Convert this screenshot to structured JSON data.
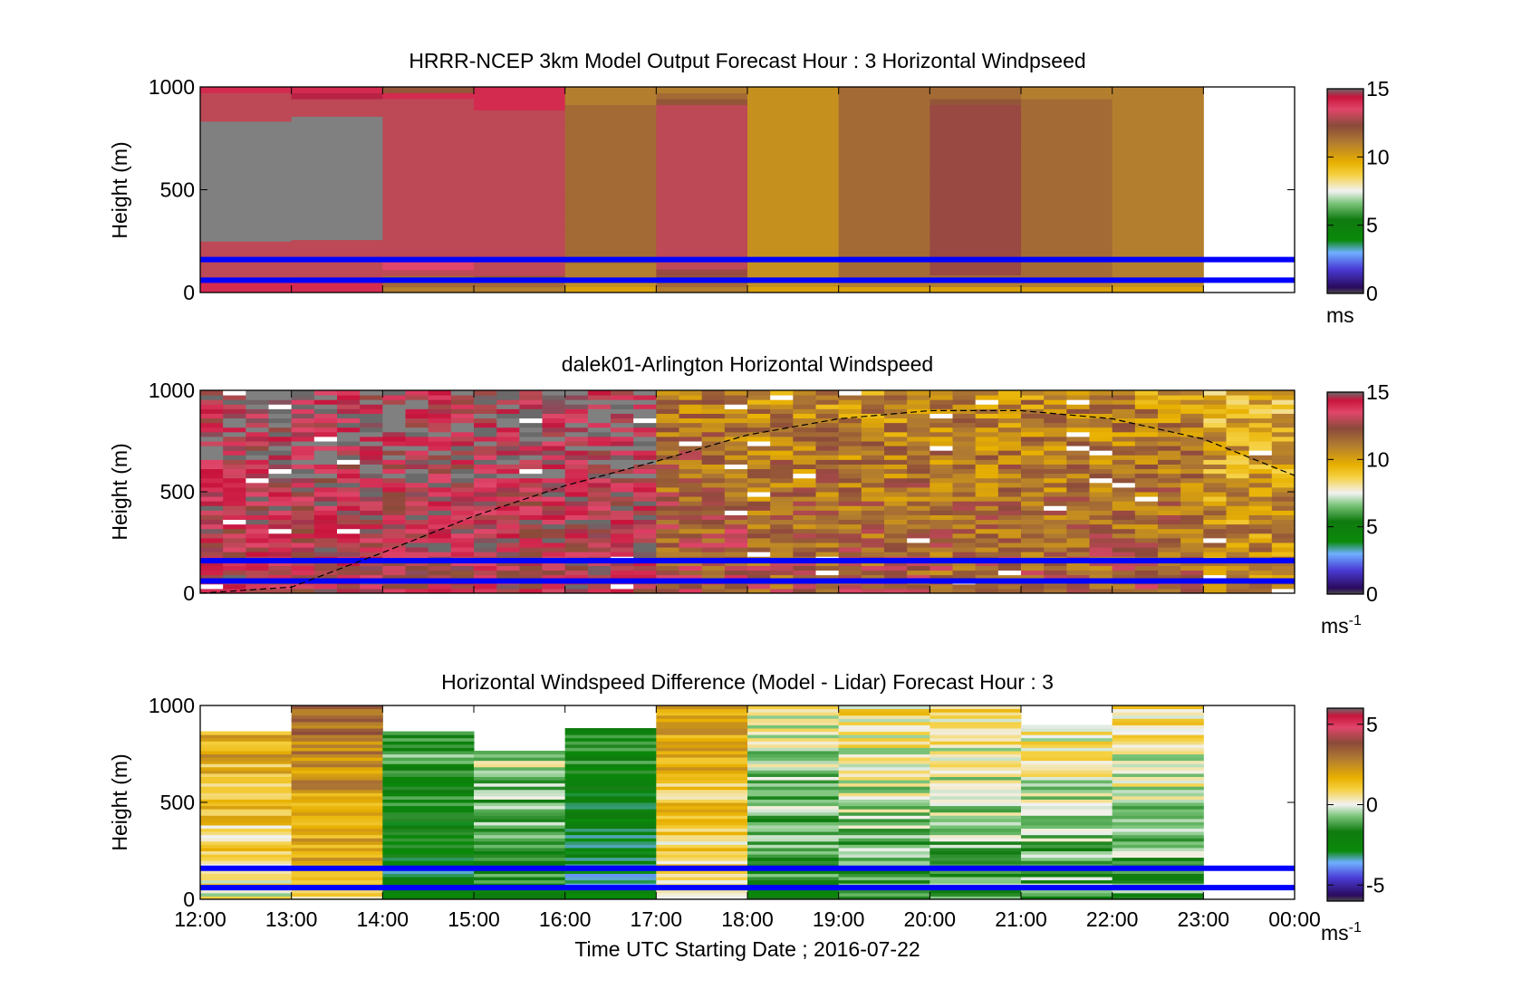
{
  "figure": {
    "xlabel": "Time UTC  Starting Date ; 2016-07-22",
    "x_ticks": [
      "12:00",
      "13:00",
      "14:00",
      "15:00",
      "16:00",
      "17:00",
      "18:00",
      "19:00",
      "20:00",
      "21:00",
      "22:00",
      "23:00",
      "00:00"
    ],
    "ylabel": "Height (m)",
    "y_ticks": [
      "0",
      "500",
      "1000"
    ],
    "line_color": "#0000ff",
    "reference_heights_m": [
      60,
      160
    ]
  },
  "panels": [
    {
      "title": "HRRR-NCEP 3km Model Output   Forecast Hour : 3 Horizontal Windpseed",
      "colorbar": {
        "ticks": [
          "0",
          "5",
          "10",
          "15"
        ],
        "unit": "ms",
        "unit_sup": ""
      }
    },
    {
      "title": "dalek01-Arlington  Horizontal Windspeed",
      "colorbar": {
        "ticks": [
          "0",
          "5",
          "10",
          "15"
        ],
        "unit": "ms",
        "unit_sup": "-1"
      }
    },
    {
      "title": "Horizontal Windspeed Difference (Model - Lidar) Forecast Hour : 3",
      "colorbar": {
        "ticks": [
          "-5",
          "0",
          "5"
        ],
        "unit": "ms",
        "unit_sup": "-1"
      }
    }
  ],
  "chart_data": [
    {
      "type": "heatmap",
      "title": "HRRR-NCEP 3km Model Output   Forecast Hour : 3 Horizontal Windpseed",
      "xlabel": "",
      "ylabel": "Height (m)",
      "x_range": [
        "12:00",
        "00:00"
      ],
      "ylim": [
        0,
        1000
      ],
      "clim": [
        0,
        15
      ],
      "colorbar_unit": "ms",
      "hours": [
        "12:00",
        "13:00",
        "14:00",
        "15:00",
        "16:00",
        "17:00",
        "18:00",
        "19:00",
        "20:00",
        "21:00",
        "22:00"
      ],
      "column_speeds_ms": [
        [
          14,
          14,
          13,
          13,
          13,
          13,
          13,
          13,
          13,
          13,
          13,
          13,
          13,
          13,
          13,
          13,
          13,
          13,
          13,
          13,
          13,
          13,
          13,
          13,
          13,
          13,
          13,
          13,
          13,
          13,
          13,
          13,
          13,
          13,
          13,
          14
        ],
        [
          14,
          14,
          13,
          13,
          13,
          13,
          13,
          13,
          13,
          13,
          13,
          13,
          13,
          13,
          13,
          13,
          13,
          13,
          13,
          13,
          13,
          13,
          13,
          13,
          13,
          13,
          13,
          13,
          13,
          13,
          13,
          13,
          13,
          14.5,
          14
        ],
        [
          11,
          11.5,
          11.5,
          13,
          13.5,
          13.5,
          13,
          13,
          13,
          13,
          13,
          13,
          13,
          13,
          13,
          13,
          13,
          13,
          13,
          13,
          13,
          13,
          13,
          13,
          13,
          13,
          13,
          13,
          13,
          13,
          13,
          13,
          13,
          13,
          14,
          12
        ],
        [
          11,
          11.5,
          12,
          13,
          13,
          13,
          13,
          13,
          13,
          13,
          13,
          13,
          13,
          13,
          13,
          13,
          13,
          13,
          13,
          13,
          13,
          13,
          13,
          13,
          13,
          13,
          13,
          13,
          13,
          13,
          13,
          13,
          14,
          14,
          14,
          14
        ],
        [
          10,
          10.5,
          11,
          11,
          11,
          11.5,
          11.5,
          11.5,
          11.5,
          11.5,
          11.5,
          11.5,
          11.5,
          11.5,
          11.5,
          11.5,
          11.5,
          11.5,
          11.5,
          11.5,
          11.5,
          11.5,
          11.5,
          11.5,
          11.5,
          11.5,
          11.5,
          11.5,
          11.5,
          11.5,
          11.5,
          11.5,
          11,
          11,
          11
        ],
        [
          11,
          11.5,
          12,
          12.5,
          13,
          13,
          13,
          13,
          13,
          13,
          13,
          13,
          13,
          13,
          13,
          13,
          13,
          13,
          13,
          13,
          13,
          13,
          13,
          13,
          13,
          13,
          13,
          13,
          13,
          13,
          13,
          13,
          12,
          11.5,
          11
        ],
        [
          10,
          10.5,
          10.5,
          10.5,
          10.5,
          10.5,
          10.5,
          10.5,
          10.5,
          10.5,
          10.5,
          10.5,
          10.5,
          10.5,
          10.5,
          10.5,
          10.5,
          10.5,
          10.5,
          10.5,
          10.5,
          10.5,
          10.5,
          10.5,
          10.5,
          10.5,
          10.5,
          10.5,
          10.5,
          10.5,
          10.5,
          10.5,
          10.5,
          10.5,
          10.5
        ],
        [
          10,
          11,
          11.5,
          11.5,
          11.5,
          11.5,
          11.5,
          11.5,
          11.5,
          11.5,
          11.5,
          11.5,
          11.5,
          11.5,
          11.5,
          11.5,
          11.5,
          11.5,
          11.5,
          11.5,
          11.5,
          11.5,
          11.5,
          11.5,
          11.5,
          11.5,
          11.5,
          11.5,
          11.5,
          11.5,
          11.5,
          11.5,
          11.5,
          11.5,
          11.5
        ],
        [
          10,
          11,
          11.5,
          12.5,
          12.5,
          12.5,
          12.5,
          12.5,
          12.5,
          12.5,
          12.5,
          12.5,
          12.5,
          12.5,
          12.5,
          12.5,
          12.5,
          12.5,
          12.5,
          12.5,
          12.5,
          12.5,
          12.5,
          12.5,
          12.5,
          12.5,
          12.5,
          12.5,
          12.5,
          12.5,
          12.5,
          12.5,
          12,
          11.5,
          11.5
        ],
        [
          10,
          11,
          11.5,
          11.5,
          11.5,
          11.5,
          11.5,
          11.5,
          11.5,
          11.5,
          11.5,
          11.5,
          11.5,
          11.5,
          11.5,
          11.5,
          11.5,
          11.5,
          11.5,
          11.5,
          11.5,
          11.5,
          11.5,
          11.5,
          11.5,
          11.5,
          11.5,
          11.5,
          11.5,
          11.5,
          11.5,
          11.5,
          11.5,
          11,
          11
        ],
        [
          10,
          10.5,
          11,
          11,
          11,
          11,
          11,
          11,
          11,
          11,
          11,
          11,
          11,
          11,
          11,
          11,
          11,
          11,
          11,
          11,
          11,
          11,
          11,
          11,
          11,
          11,
          11,
          11,
          11,
          11,
          11,
          11,
          11,
          11,
          11
        ]
      ]
    },
    {
      "type": "heatmap",
      "title": "dalek01-Arlington  Horizontal Windspeed",
      "xlabel": "",
      "ylabel": "Height (m)",
      "x_range": [
        "12:00",
        "00:00"
      ],
      "ylim": [
        0,
        1000
      ],
      "clim": [
        0,
        15
      ],
      "colorbar_unit": "ms-1",
      "hourly_mean_speed_ms": [
        {
          "hour": "12:00",
          "value": 13.5
        },
        {
          "hour": "13:00",
          "value": 13.5
        },
        {
          "hour": "14:00",
          "value": 13.5
        },
        {
          "hour": "15:00",
          "value": 13.5
        },
        {
          "hour": "16:00",
          "value": 13.5
        },
        {
          "hour": "17:00",
          "value": 12.5
        },
        {
          "hour": "18:00",
          "value": 12
        },
        {
          "hour": "19:00",
          "value": 12
        },
        {
          "hour": "20:00",
          "value": 12
        },
        {
          "hour": "21:00",
          "value": 12
        },
        {
          "hour": "22:00",
          "value": 12
        },
        {
          "hour": "23:00",
          "value": 11
        }
      ],
      "dashed_line": {
        "x": [
          "12:00",
          "13:00",
          "14:00",
          "15:00",
          "16:00",
          "17:00",
          "18:00",
          "19:00",
          "20:00",
          "21:00",
          "22:00",
          "23:00",
          "00:00"
        ],
        "y": [
          0,
          30,
          200,
          380,
          530,
          650,
          780,
          860,
          900,
          900,
          860,
          760,
          580
        ]
      }
    },
    {
      "type": "heatmap",
      "title": "Horizontal Windspeed Difference (Model - Lidar) Forecast Hour : 3",
      "xlabel": "Time UTC  Starting Date ; 2016-07-22",
      "ylabel": "Height (m)",
      "x_range": [
        "12:00",
        "00:00"
      ],
      "ylim": [
        0,
        1000
      ],
      "clim": [
        -6,
        6
      ],
      "colorbar_unit": "ms-1",
      "hourly": [
        {
          "hour": "12:00",
          "mean_diff": 1,
          "top_m": 860
        },
        {
          "hour": "13:00",
          "mean_diff": 2,
          "top_m": 1000
        },
        {
          "hour": "14:00",
          "mean_diff": -2,
          "top_m": 860
        },
        {
          "hour": "15:00",
          "mean_diff": -1,
          "top_m": 760
        },
        {
          "hour": "16:00",
          "mean_diff": -2.5,
          "top_m": 880
        },
        {
          "hour": "17:00",
          "mean_diff": 1,
          "top_m": 1000
        },
        {
          "hour": "18:00",
          "mean_diff": -1,
          "top_m": 1000
        },
        {
          "hour": "19:00",
          "mean_diff": -0.5,
          "top_m": 1000
        },
        {
          "hour": "20:00",
          "mean_diff": -0.5,
          "top_m": 1000
        },
        {
          "hour": "21:00",
          "mean_diff": -0.5,
          "top_m": 900
        },
        {
          "hour": "22:00",
          "mean_diff": -0.5,
          "top_m": 1000
        }
      ]
    }
  ]
}
